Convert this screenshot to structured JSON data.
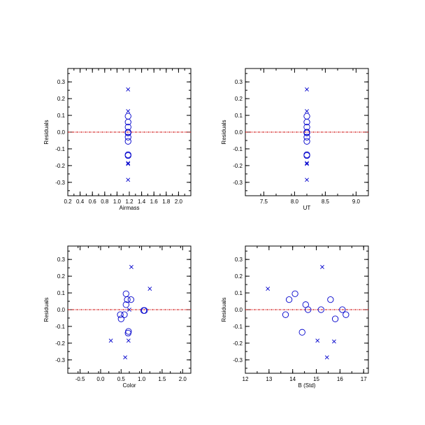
{
  "colors": {
    "marker": "#0000cc",
    "zero_line": "#cc0000",
    "axes": "#000000"
  },
  "chart_data": [
    {
      "type": "scatter",
      "xlabel": "Airmass",
      "ylabel": "Residuals",
      "xlim": [
        0.2,
        2.2
      ],
      "ylim": [
        -0.38,
        0.38
      ],
      "xticks": [
        0.2,
        0.4,
        0.6,
        0.8,
        1.0,
        1.2,
        1.4,
        1.6,
        1.8,
        2.0
      ],
      "xtick_labels": [
        "0.2",
        "0.4",
        "0.6",
        "0.8",
        "1.0",
        "1.2",
        "1.4",
        "1.6",
        "1.8",
        "2.0"
      ],
      "yticks": [
        -0.3,
        -0.2,
        -0.1,
        0.0,
        0.1,
        0.2,
        0.3
      ],
      "ytick_labels": [
        "-0.3",
        "-0.2",
        "-0.1",
        "0.0",
        "0.1",
        "0.2",
        "0.3"
      ],
      "zero_line": true,
      "series": [
        {
          "marker": "circle",
          "points": [
            [
              1.18,
              0.095
            ],
            [
              1.18,
              0.06
            ],
            [
              1.18,
              0.03
            ],
            [
              1.18,
              0.0
            ],
            [
              1.18,
              -0.005
            ],
            [
              1.18,
              -0.03
            ],
            [
              1.18,
              -0.055
            ],
            [
              1.18,
              -0.135
            ],
            [
              1.18,
              -0.14
            ]
          ]
        },
        {
          "marker": "x",
          "points": [
            [
              1.18,
              0.255
            ],
            [
              1.18,
              0.125
            ],
            [
              1.18,
              -0.185
            ],
            [
              1.18,
              -0.19
            ],
            [
              1.18,
              -0.285
            ]
          ]
        }
      ]
    },
    {
      "type": "scatter",
      "xlabel": "UT",
      "ylabel": "Residuals",
      "xlim": [
        7.2,
        9.2
      ],
      "ylim": [
        -0.38,
        0.38
      ],
      "xticks": [
        7.5,
        8.0,
        8.5,
        9.0
      ],
      "xtick_labels": [
        "7.5",
        "8.0",
        "8.5",
        "9.0"
      ],
      "yticks": [
        -0.3,
        -0.2,
        -0.1,
        0.0,
        0.1,
        0.2,
        0.3
      ],
      "ytick_labels": [
        "-0.3",
        "-0.2",
        "-0.1",
        "0.0",
        "0.1",
        "0.2",
        "0.3"
      ],
      "zero_line": true,
      "series": [
        {
          "marker": "circle",
          "points": [
            [
              8.2,
              0.095
            ],
            [
              8.2,
              0.06
            ],
            [
              8.2,
              0.03
            ],
            [
              8.2,
              0.0
            ],
            [
              8.2,
              -0.005
            ],
            [
              8.2,
              -0.03
            ],
            [
              8.2,
              -0.055
            ],
            [
              8.2,
              -0.135
            ],
            [
              8.2,
              -0.14
            ]
          ]
        },
        {
          "marker": "x",
          "points": [
            [
              8.2,
              0.255
            ],
            [
              8.2,
              0.125
            ],
            [
              8.2,
              -0.185
            ],
            [
              8.2,
              -0.19
            ],
            [
              8.2,
              -0.285
            ]
          ]
        }
      ]
    },
    {
      "type": "scatter",
      "xlabel": "Color",
      "ylabel": "Residuals",
      "xlim": [
        -0.8,
        2.2
      ],
      "ylim": [
        -0.38,
        0.38
      ],
      "xticks": [
        -0.5,
        0.0,
        0.5,
        1.0,
        1.5,
        2.0
      ],
      "xtick_labels": [
        "-0.5",
        "0.0",
        "0.5",
        "1.0",
        "1.5",
        "2.0"
      ],
      "yticks": [
        -0.3,
        -0.2,
        -0.1,
        0.0,
        0.1,
        0.2,
        0.3
      ],
      "ytick_labels": [
        "-0.3",
        "-0.2",
        "-0.1",
        "0.0",
        "0.1",
        "0.2",
        "0.3"
      ],
      "zero_line": true,
      "series": [
        {
          "marker": "circle",
          "points": [
            [
              0.62,
              0.095
            ],
            [
              0.74,
              0.06
            ],
            [
              0.65,
              0.06
            ],
            [
              0.62,
              0.03
            ],
            [
              1.05,
              -0.005
            ],
            [
              1.07,
              -0.005
            ],
            [
              0.48,
              -0.03
            ],
            [
              0.58,
              -0.03
            ],
            [
              0.5,
              -0.055
            ],
            [
              0.68,
              -0.13
            ],
            [
              0.67,
              -0.14
            ]
          ]
        },
        {
          "marker": "x",
          "points": [
            [
              0.75,
              0.255
            ],
            [
              1.2,
              0.125
            ],
            [
              0.7,
              0.0
            ],
            [
              0.25,
              -0.185
            ],
            [
              0.68,
              -0.185
            ],
            [
              0.6,
              -0.285
            ]
          ]
        }
      ]
    },
    {
      "type": "scatter",
      "xlabel": "B (Std)",
      "ylabel": "Residuals",
      "xlim": [
        12.0,
        17.2
      ],
      "ylim": [
        -0.38,
        0.38
      ],
      "xticks": [
        12,
        13,
        14,
        15,
        16,
        17
      ],
      "xtick_labels": [
        "12",
        "13",
        "14",
        "15",
        "16",
        "17"
      ],
      "yticks": [
        -0.3,
        -0.2,
        -0.1,
        0.0,
        0.1,
        0.2,
        0.3
      ],
      "ytick_labels": [
        "-0.3",
        "-0.2",
        "-0.1",
        "0.0",
        "0.1",
        "0.2",
        "0.3"
      ],
      "zero_line": true,
      "series": [
        {
          "marker": "circle",
          "points": [
            [
              14.1,
              0.095
            ],
            [
              13.85,
              0.06
            ],
            [
              15.6,
              0.06
            ],
            [
              14.55,
              0.03
            ],
            [
              14.65,
              0.0
            ],
            [
              15.2,
              0.0
            ],
            [
              16.1,
              0.0
            ],
            [
              13.7,
              -0.03
            ],
            [
              16.25,
              -0.03
            ],
            [
              15.8,
              -0.055
            ],
            [
              14.4,
              -0.135
            ]
          ]
        },
        {
          "marker": "x",
          "points": [
            [
              15.25,
              0.255
            ],
            [
              12.95,
              0.125
            ],
            [
              15.05,
              -0.185
            ],
            [
              15.75,
              -0.19
            ],
            [
              15.45,
              -0.285
            ]
          ]
        }
      ]
    }
  ]
}
